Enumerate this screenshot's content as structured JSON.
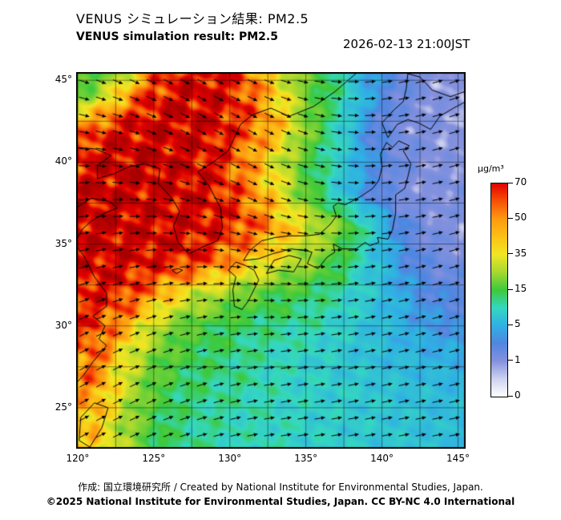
{
  "header": {
    "title_jp": "VENUS シミュレーション結果: PM2.5",
    "title_en": "VENUS simulation result: PM2.5",
    "datetime": "2026-02-13 21:00JST"
  },
  "colorbar": {
    "unit": "µg/m³"
  },
  "footer": {
    "credit": "作成: 国立環境研究所 / Created by National Institute for Environmental Studies, Japan.",
    "license": "©2025 National Institute for Environmental Studies, Japan. CC BY-NC 4.0 International"
  },
  "chart_data": {
    "type": "heatmap",
    "variable": "PM2.5",
    "unit": "µg/m³",
    "datetime": "2026-02-13 21:00JST",
    "legend_position": "right",
    "lon_ticks": [
      120,
      125,
      130,
      135,
      140,
      145
    ],
    "lat_ticks": [
      45,
      40,
      35,
      30,
      25
    ],
    "lon_range": [
      119.9,
      145.5
    ],
    "lat_range": [
      22.5,
      45.5
    ],
    "graticule_step_deg": 2.5,
    "colorbar_ticks": [
      0,
      1,
      5,
      15,
      35,
      50,
      70
    ],
    "color_scale": [
      [
        0,
        "#ffffff"
      ],
      [
        0.5,
        "#cdd2f0"
      ],
      [
        1,
        "#8591de"
      ],
      [
        3,
        "#4f86e0"
      ],
      [
        5,
        "#2fb0e4"
      ],
      [
        10,
        "#35d8c0"
      ],
      [
        15,
        "#3cc93c"
      ],
      [
        25,
        "#a6d830"
      ],
      [
        35,
        "#f2e622"
      ],
      [
        42,
        "#fcc316"
      ],
      [
        50,
        "#fc9a10"
      ],
      [
        60,
        "#f75106"
      ],
      [
        70,
        "#e00000"
      ],
      [
        85,
        "#a80000"
      ]
    ],
    "pm25_grid": {
      "lons": [
        119,
        121,
        123,
        125,
        127,
        129,
        131,
        133,
        135,
        137,
        139,
        141,
        143,
        145,
        147
      ],
      "lats": [
        46,
        44,
        42,
        40,
        38,
        36,
        34,
        32,
        30,
        28,
        26,
        24
      ],
      "values": [
        [
          16,
          13,
          18,
          50,
          68,
          72,
          55,
          35,
          18,
          12,
          4,
          2.5,
          1.2,
          0.8,
          0.6
        ],
        [
          20,
          22,
          45,
          68,
          74,
          74,
          62,
          40,
          20,
          12,
          5,
          2,
          1.2,
          0.9,
          0.7
        ],
        [
          40,
          60,
          72,
          75,
          75,
          72,
          60,
          45,
          22,
          10,
          3,
          1.5,
          1.2,
          1,
          0.8
        ],
        [
          65,
          74,
          76,
          76,
          74,
          68,
          52,
          32,
          16,
          9,
          4,
          2,
          1.2,
          1,
          1
        ],
        [
          72,
          76,
          76,
          75,
          74,
          70,
          56,
          38,
          18,
          8,
          3,
          1.5,
          1,
          1.5,
          1
        ],
        [
          74,
          76,
          75,
          74,
          72,
          70,
          62,
          48,
          33,
          22,
          10,
          3,
          1.5,
          1,
          1
        ],
        [
          72,
          74,
          73,
          71,
          68,
          58,
          45,
          33,
          24,
          16,
          8,
          4,
          2,
          1.5,
          1.5
        ],
        [
          62,
          68,
          66,
          50,
          34,
          26,
          20,
          16,
          14,
          11,
          8,
          5,
          3,
          2.5,
          2
        ],
        [
          55,
          64,
          48,
          28,
          18,
          15,
          13,
          12,
          11,
          9,
          7,
          5.5,
          4,
          3.5,
          3
        ],
        [
          48,
          58,
          34,
          20,
          15,
          13,
          12,
          10,
          9,
          8,
          7,
          6,
          5.5,
          5,
          4.5
        ],
        [
          44,
          52,
          30,
          17,
          13,
          12,
          11,
          10,
          9,
          8.5,
          8,
          7,
          6.5,
          6,
          5.5
        ],
        [
          40,
          42,
          26,
          15,
          12,
          11,
          10,
          10,
          9,
          8.5,
          8,
          7.5,
          7,
          6.5,
          6
        ]
      ]
    },
    "wind_grid": {
      "lons": [
        120,
        124,
        128,
        132,
        136,
        140,
        144,
        148
      ],
      "lats": [
        46,
        42,
        38,
        34,
        30,
        26,
        22
      ],
      "dir_deg": [
        [
          -20,
          -25,
          -30,
          -20,
          -5,
          10,
          18,
          22
        ],
        [
          -10,
          -20,
          -30,
          -30,
          -15,
          5,
          15,
          20
        ],
        [
          5,
          -5,
          -20,
          -25,
          -10,
          5,
          12,
          18
        ],
        [
          15,
          10,
          0,
          -10,
          0,
          10,
          15,
          18
        ],
        [
          25,
          20,
          12,
          5,
          8,
          12,
          15,
          15
        ],
        [
          30,
          25,
          18,
          10,
          10,
          12,
          12,
          12
        ],
        [
          28,
          22,
          15,
          10,
          8,
          10,
          10,
          10
        ]
      ]
    }
  }
}
